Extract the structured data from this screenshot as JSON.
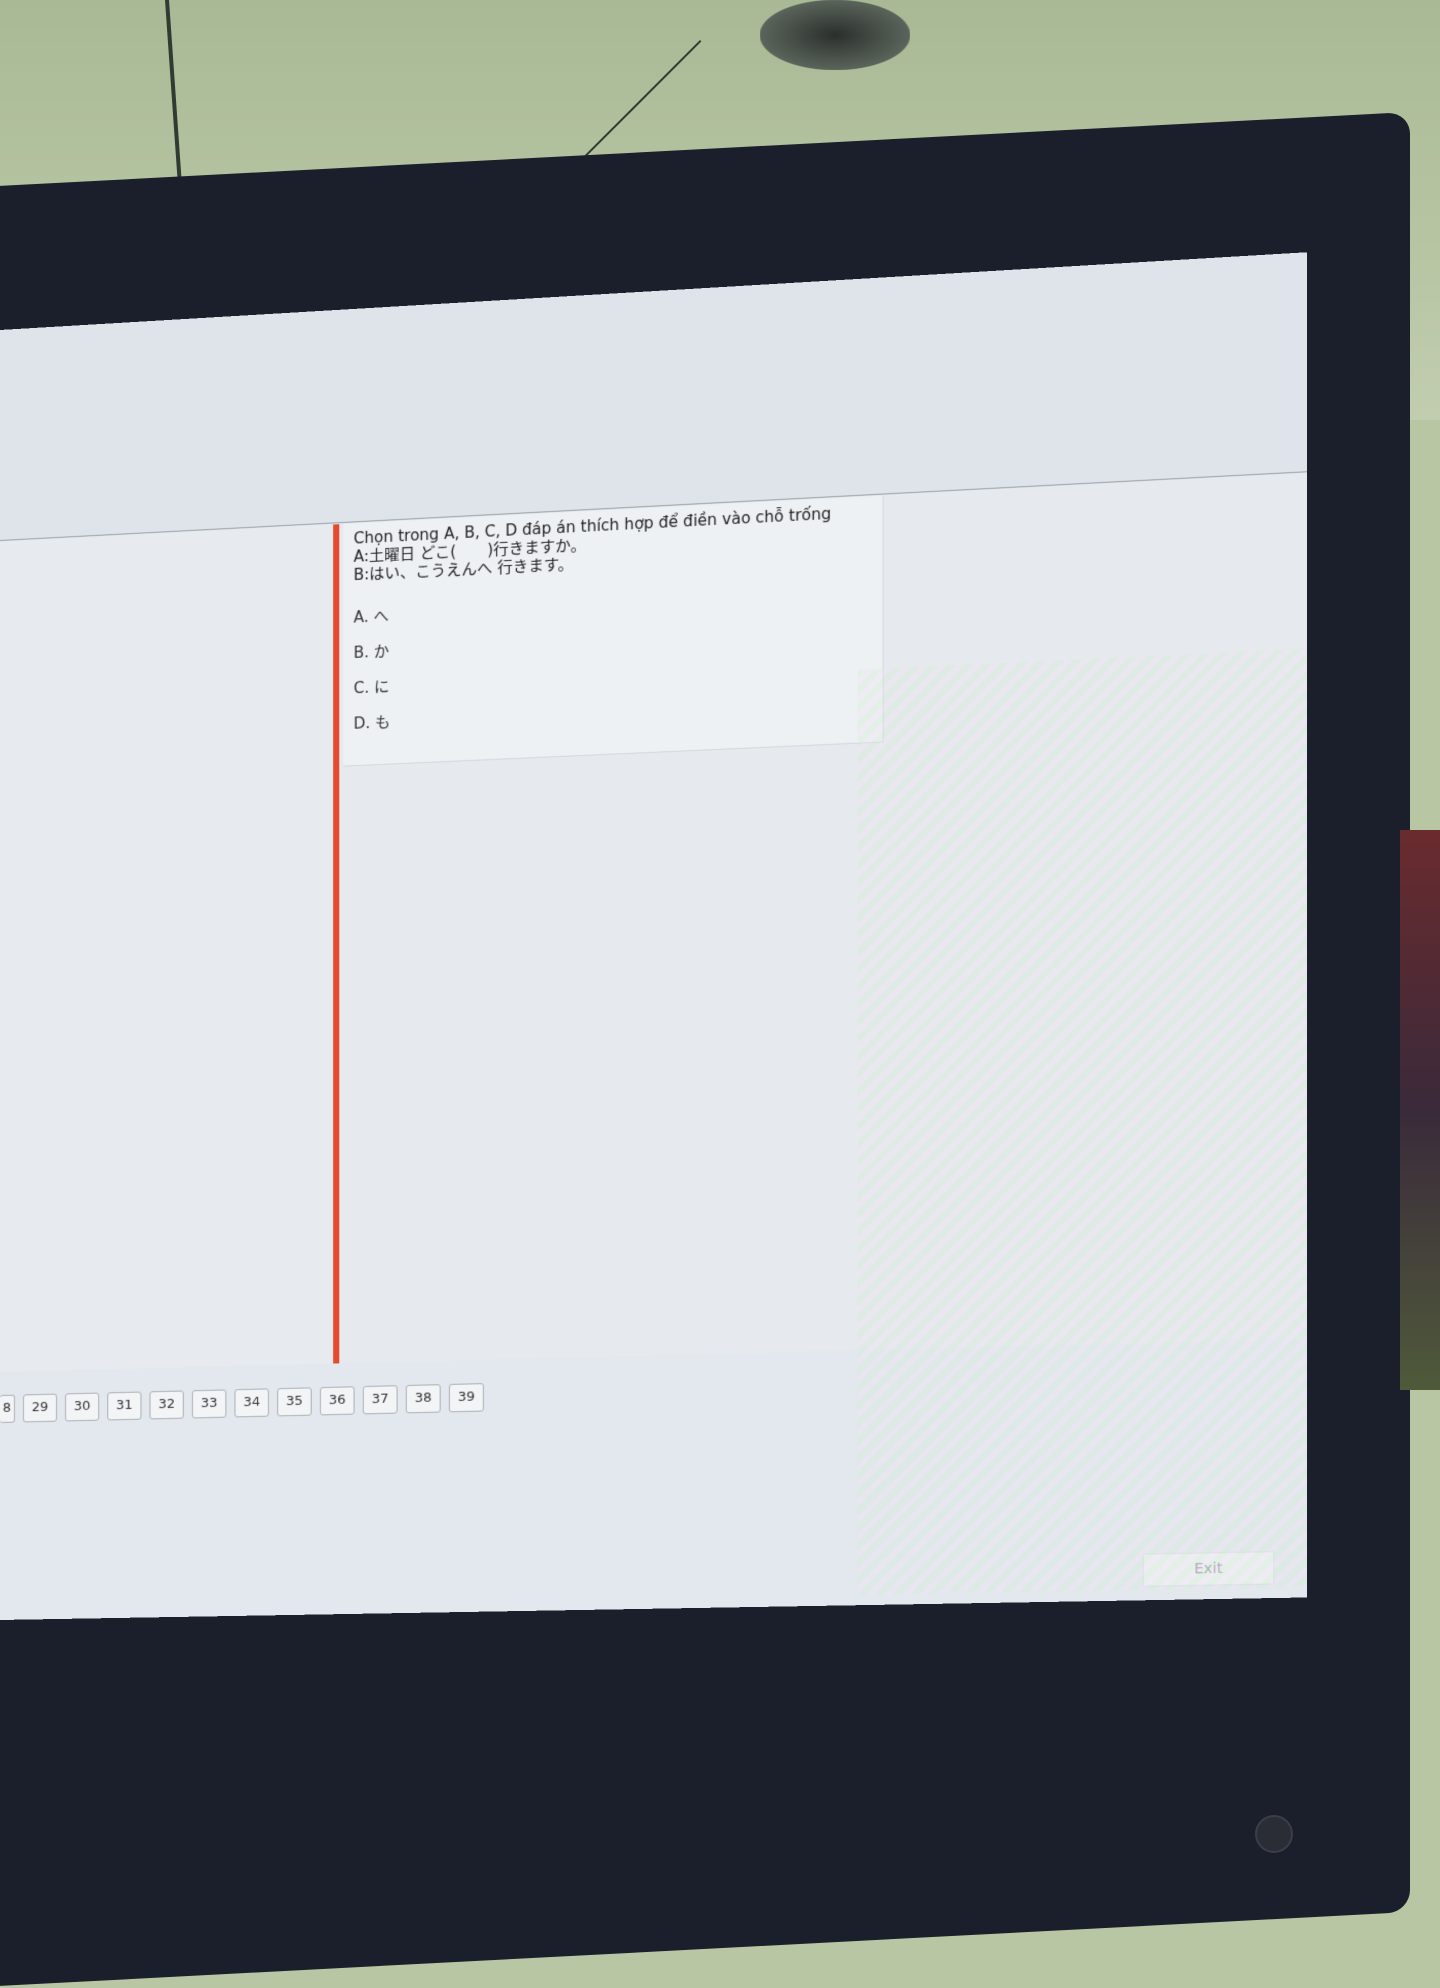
{
  "question": {
    "prompt": "Chọn trong A, B, C, D đáp án thích hợp để điền vào chỗ trống",
    "line_a": "A:土曜日 どこ(　　)行きますか。",
    "line_b": "B:はい、こうえんへ 行きます。"
  },
  "options": [
    {
      "label": "A. へ"
    },
    {
      "label": "B. か"
    },
    {
      "label": "C. に"
    },
    {
      "label": "D. も"
    }
  ],
  "nav_numbers": [
    "8",
    "29",
    "30",
    "31",
    "32",
    "33",
    "34",
    "35",
    "36",
    "37",
    "38",
    "39"
  ],
  "exit_label": "Exit",
  "colors": {
    "accent": "#e34a2f",
    "screen_bg": "#e3e8ee",
    "monitor_frame": "#1b1e2b"
  }
}
